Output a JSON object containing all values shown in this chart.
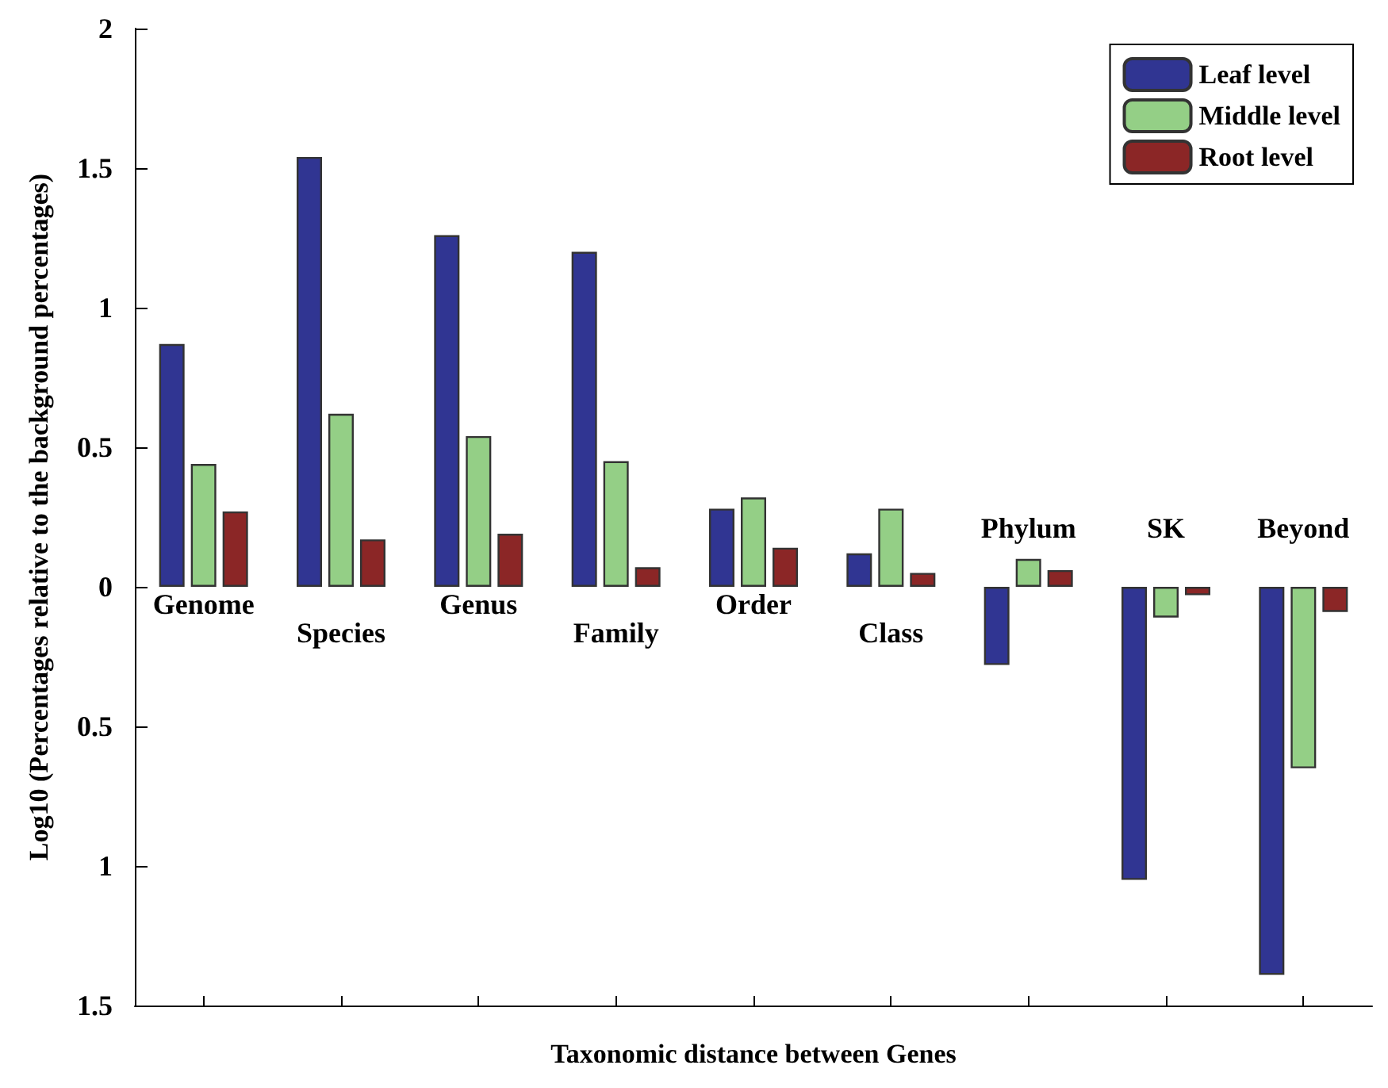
{
  "chart_data": {
    "type": "bar",
    "ylabel": "Log10 (Percentages relative to the background percentages)",
    "xlabel": "Taxonomic distance between Genes",
    "categories": [
      "Genome",
      "Species",
      "Genus",
      "Family",
      "Order",
      "Class",
      "Phylum",
      "SK",
      "Beyond"
    ],
    "series": [
      {
        "name": "Leaf level",
        "color": "#303592",
        "values": [
          0.87,
          1.54,
          1.26,
          1.2,
          0.28,
          0.12,
          -0.28,
          -1.05,
          -1.39
        ]
      },
      {
        "name": "Middle level",
        "color": "#94cf86",
        "values": [
          0.44,
          0.62,
          0.54,
          0.45,
          0.32,
          0.28,
          0.1,
          -0.11,
          -0.65
        ]
      },
      {
        "name": "Root level",
        "color": "#8b2626",
        "values": [
          0.27,
          0.17,
          0.19,
          0.07,
          0.14,
          0.05,
          0.06,
          -0.03,
          -0.09
        ]
      }
    ],
    "ylim": [
      -1.5,
      2
    ],
    "yticks": [
      {
        "value": -1.5,
        "label": "1.5"
      },
      {
        "value": -1,
        "label": "1"
      },
      {
        "value": -0.5,
        "label": "0.5"
      },
      0,
      0.5,
      1,
      1.5,
      2
    ],
    "grid": false,
    "legend": "top right"
  }
}
